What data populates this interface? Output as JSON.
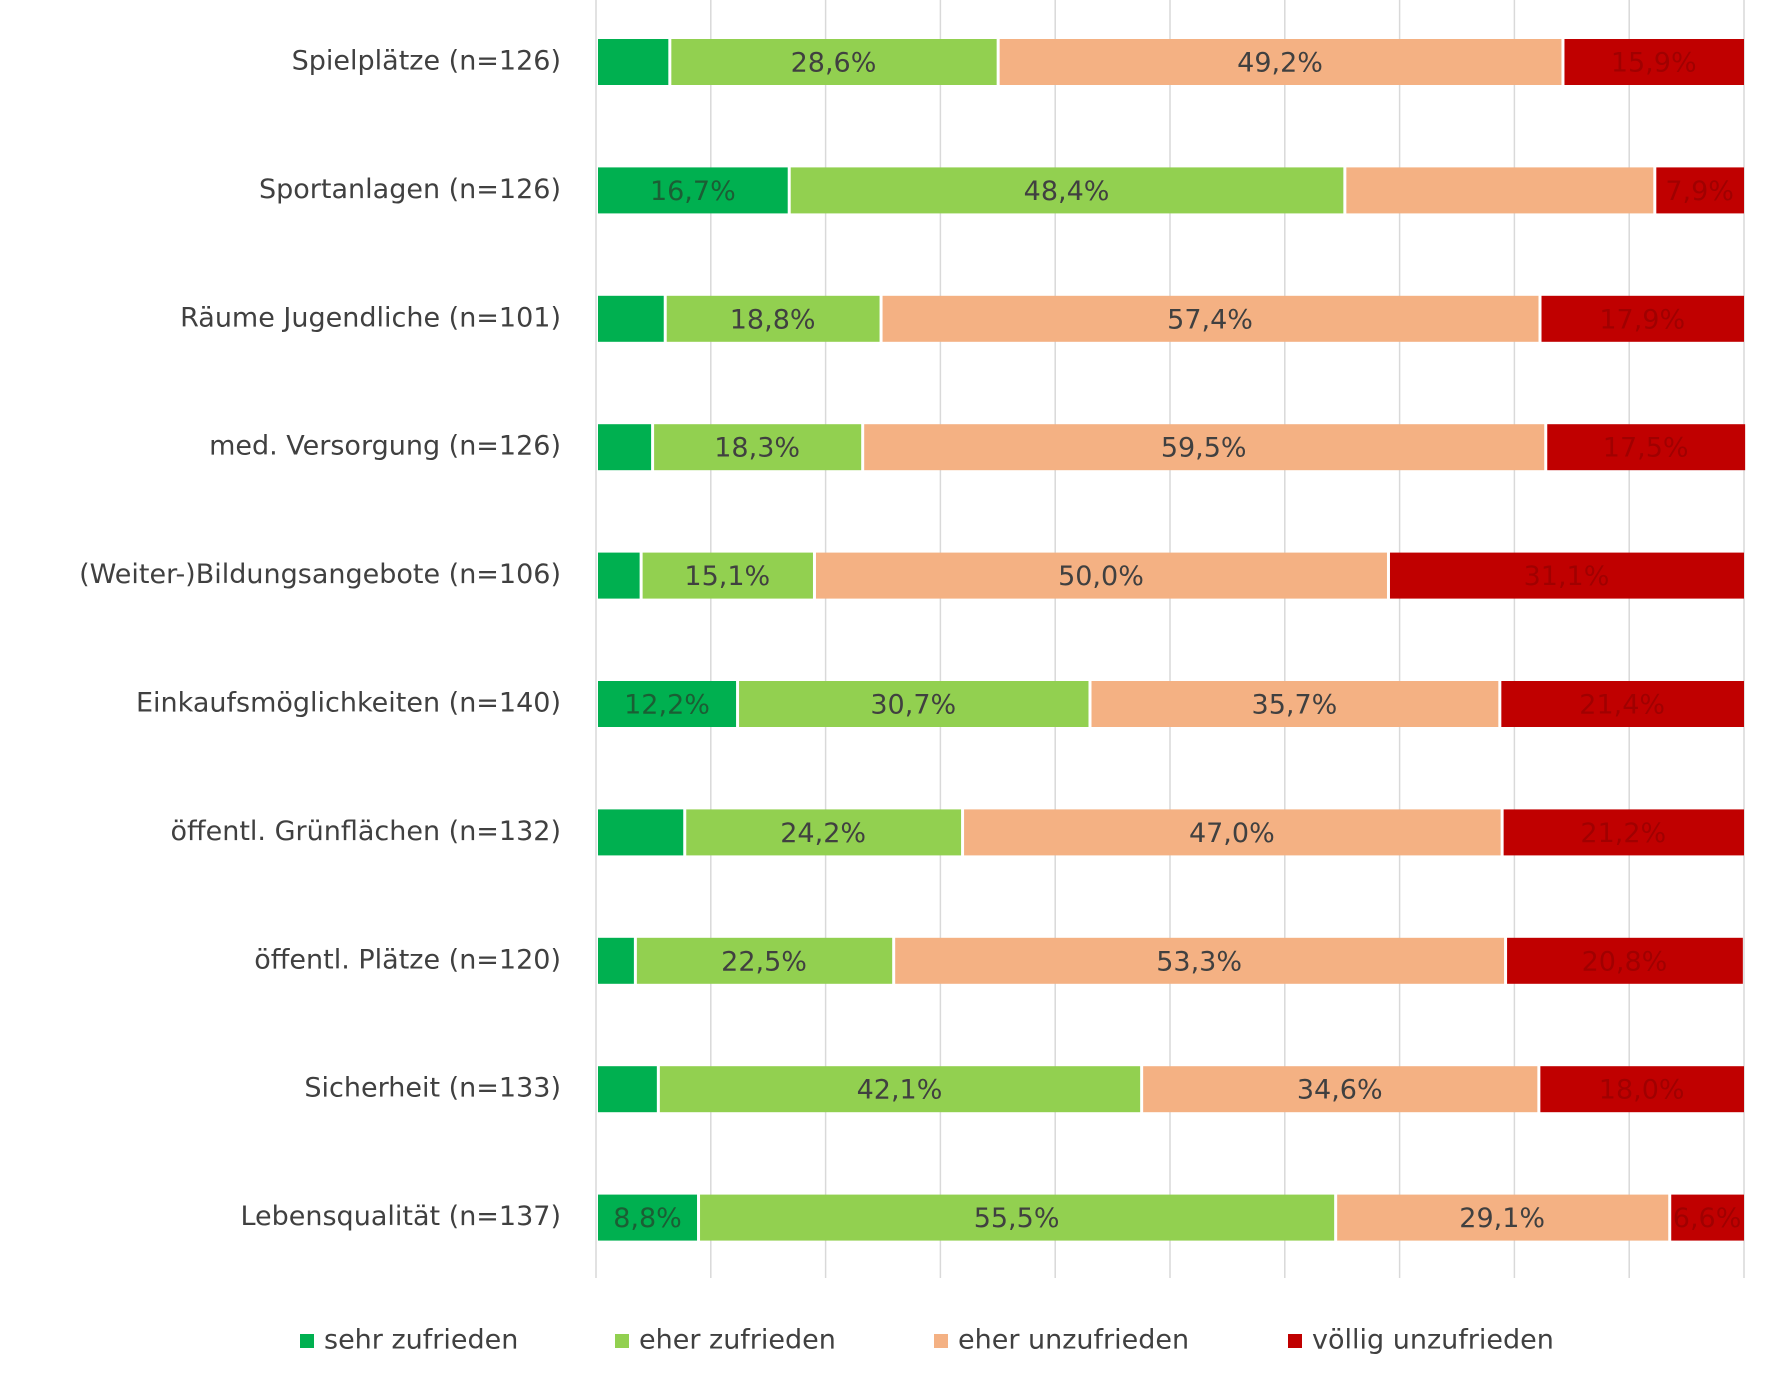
{
  "chart_data": {
    "type": "stacked-bar-horizontal",
    "categories": [
      "Spielplätze (n=126)",
      "Sportanlagen (n=126)",
      "Räume Jugendliche (n=101)",
      "med. Versorgung (n=126)",
      "(Weiter-)Bildungsangebote (n=106)",
      "Einkaufsmöglichkeiten (n=140)",
      "öffentl. Grünflächen (n=132)",
      "öffentl. Plätze (n=120)",
      "Sicherheit (n=133)",
      "Lebensqualität (n=137)"
    ],
    "series": [
      {
        "name": "sehr zufrieden",
        "color": "#00b050",
        "values": [
          6.3,
          16.7,
          5.9,
          4.8,
          3.8,
          12.2,
          7.6,
          3.3,
          5.3,
          8.8
        ],
        "value_labels": [
          null,
          "16,7%",
          null,
          null,
          null,
          "12,2%",
          null,
          null,
          null,
          "8,8%"
        ]
      },
      {
        "name": "eher zufrieden",
        "color": "#92d050",
        "values": [
          28.6,
          48.4,
          18.8,
          18.3,
          15.1,
          30.7,
          24.2,
          22.5,
          42.1,
          55.5
        ],
        "value_labels": [
          "28,6%",
          "48,4%",
          "18,8%",
          "18,3%",
          "15,1%",
          "30,7%",
          "24,2%",
          "22,5%",
          "42,1%",
          "55,5%"
        ]
      },
      {
        "name": "eher unzufrieden",
        "color": "#f4b183",
        "values": [
          49.2,
          27.0,
          57.4,
          59.5,
          50.0,
          35.7,
          47.0,
          53.3,
          34.6,
          29.1
        ],
        "value_labels": [
          "49,2%",
          null,
          "57,4%",
          "59,5%",
          "50,0%",
          "35,7%",
          "47,0%",
          "53,3%",
          "34,6%",
          "29,1%"
        ]
      },
      {
        "name": "völlig unzufrieden",
        "color": "#c00000",
        "values": [
          15.9,
          7.9,
          17.9,
          17.5,
          31.1,
          21.4,
          21.2,
          20.8,
          18.0,
          6.6
        ],
        "value_labels": [
          "15,9%",
          "7,9%",
          "17,9%",
          "17,5%",
          "31,1%",
          "21,4%",
          "21,2%",
          "20,8%",
          "18,0%",
          "6,6%"
        ]
      }
    ],
    "xlim": [
      0,
      100
    ],
    "xticks": [
      0,
      10,
      20,
      30,
      40,
      50,
      60,
      70,
      80,
      90,
      100
    ],
    "grid": true,
    "legend": "bottom"
  }
}
